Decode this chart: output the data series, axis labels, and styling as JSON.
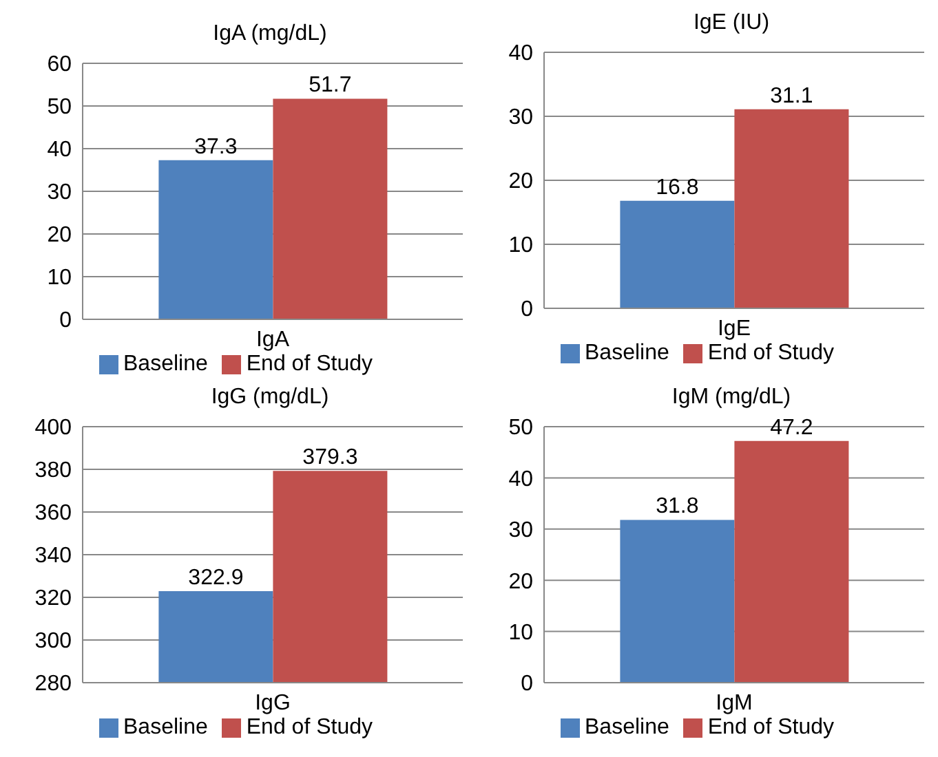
{
  "chart_data": [
    {
      "type": "bar",
      "title": "IgA (mg/dL)",
      "categories": [
        "IgA"
      ],
      "series": [
        {
          "name": "Baseline",
          "color": "#4f81bd",
          "values": [
            37.3
          ]
        },
        {
          "name": "End of Study",
          "color": "#c0504d",
          "values": [
            51.7
          ]
        }
      ],
      "ylim": [
        0,
        60
      ],
      "yticks": [
        0,
        10,
        20,
        30,
        40,
        50,
        60
      ],
      "grid": "y",
      "legend": "bottom",
      "data_labels": true
    },
    {
      "type": "bar",
      "title": "IgE (IU)",
      "categories": [
        "IgE"
      ],
      "series": [
        {
          "name": "Baseline",
          "color": "#4f81bd",
          "values": [
            16.8
          ]
        },
        {
          "name": "End of Study",
          "color": "#c0504d",
          "values": [
            31.1
          ]
        }
      ],
      "ylim": [
        0,
        40
      ],
      "yticks": [
        0,
        10,
        20,
        30,
        40
      ],
      "grid": "y",
      "legend": "bottom",
      "data_labels": true
    },
    {
      "type": "bar",
      "title": "IgG (mg/dL)",
      "categories": [
        "IgG"
      ],
      "series": [
        {
          "name": "Baseline",
          "color": "#4f81bd",
          "values": [
            322.9
          ]
        },
        {
          "name": "End of Study",
          "color": "#c0504d",
          "values": [
            379.3
          ]
        }
      ],
      "ylim": [
        280,
        400
      ],
      "yticks": [
        280,
        300,
        320,
        340,
        360,
        380,
        400
      ],
      "grid": "y",
      "legend": "bottom",
      "data_labels": true
    },
    {
      "type": "bar",
      "title": "IgM (mg/dL)",
      "categories": [
        "IgM"
      ],
      "series": [
        {
          "name": "Baseline",
          "color": "#4f81bd",
          "values": [
            31.8
          ]
        },
        {
          "name": "End of Study",
          "color": "#c0504d",
          "values": [
            47.2
          ]
        }
      ],
      "ylim": [
        0,
        50
      ],
      "yticks": [
        0,
        10,
        20,
        30,
        40,
        50
      ],
      "grid": "y",
      "legend": "bottom",
      "data_labels": true
    }
  ]
}
